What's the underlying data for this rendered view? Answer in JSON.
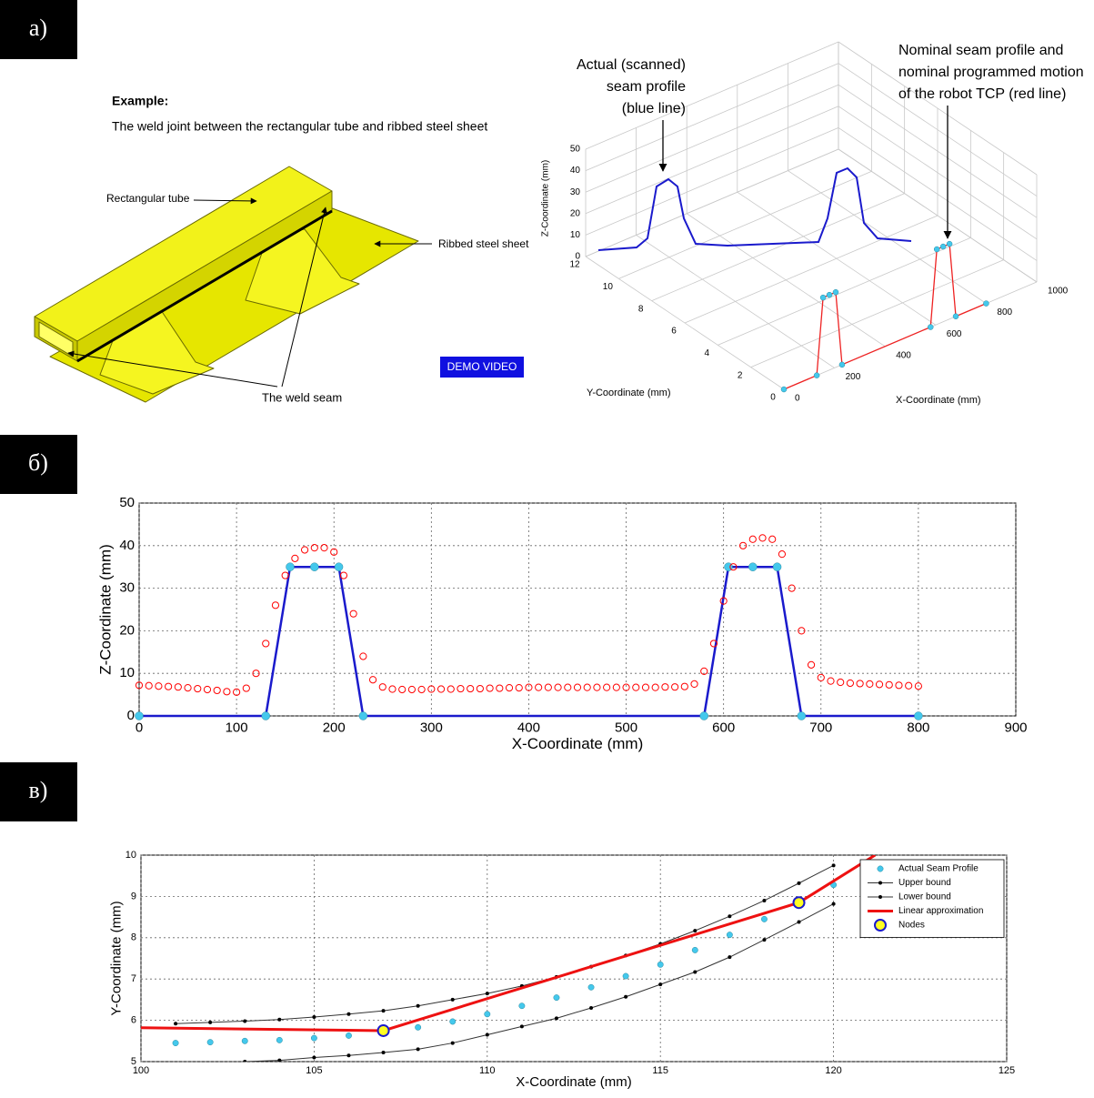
{
  "labels": {
    "a": "a)",
    "b": "б)",
    "c": "в)"
  },
  "panel_a": {
    "example_title": "Example:",
    "example_text": "The weld joint between the rectangular tube and ribbed steel sheet",
    "callouts": [
      "Rectangular tube",
      "Ribbed steel sheet",
      "The weld seam"
    ],
    "button": "DEMO VIDEO",
    "plot3d": {
      "annotations": [
        [
          "Actual (scanned)",
          "seam profile",
          "(blue line)"
        ],
        [
          "Nominal seam profile and",
          "nominal programmed motion",
          "of the robot TCP (red line)"
        ]
      ],
      "zlabel": "Z-Coordinate (mm)",
      "ylabel": "Y-Coordinate (mm)",
      "xlabel": "X-Coordinate (mm)",
      "zticks": [
        0,
        10,
        20,
        30,
        40,
        50
      ],
      "yticks": [
        0,
        2,
        4,
        6,
        8,
        10,
        12
      ],
      "xticks": [
        0,
        200,
        400,
        600,
        800,
        1000
      ]
    }
  },
  "chart_data": [
    {
      "type": "line",
      "xlabel": "X-Coordinate (mm)",
      "ylabel": "Z-Coordinate (mm)",
      "xlim": [
        0,
        900
      ],
      "ylim": [
        0,
        50
      ],
      "xticks": [
        0,
        100,
        200,
        300,
        400,
        500,
        600,
        700,
        800,
        900
      ],
      "yticks": [
        0,
        10,
        20,
        30,
        40,
        50
      ],
      "grid": true,
      "series": [
        {
          "color": "#1a1acc",
          "marker_color": "#44c8ec",
          "line": true,
          "marker": "dot",
          "x": [
            0,
            130,
            155,
            180,
            205,
            230,
            580,
            605,
            630,
            655,
            680,
            800
          ],
          "values": [
            0,
            0,
            35,
            35,
            35,
            0,
            0,
            35,
            35,
            35,
            0,
            0
          ]
        },
        {
          "marker_color": "#ff0000",
          "line": false,
          "marker": "ring",
          "x": [
            0,
            10,
            20,
            30,
            40,
            50,
            60,
            70,
            80,
            90,
            100,
            110,
            120,
            130,
            140,
            150,
            160,
            170,
            180,
            190,
            200,
            210,
            220,
            230,
            240,
            250,
            260,
            270,
            280,
            290,
            300,
            310,
            320,
            330,
            340,
            350,
            360,
            370,
            380,
            390,
            400,
            410,
            420,
            430,
            440,
            450,
            460,
            470,
            480,
            490,
            500,
            510,
            520,
            530,
            540,
            550,
            560,
            570,
            580,
            590,
            600,
            610,
            620,
            630,
            640,
            650,
            660,
            670,
            680,
            690,
            700,
            710,
            720,
            730,
            740,
            750,
            760,
            770,
            780,
            790,
            800
          ],
          "values": [
            7.2,
            7.1,
            7.0,
            6.9,
            6.8,
            6.6,
            6.4,
            6.2,
            6.0,
            5.7,
            5.6,
            6.5,
            10,
            17,
            26,
            33,
            37,
            39,
            39.5,
            39.5,
            38.5,
            33,
            24,
            14,
            8.5,
            6.8,
            6.3,
            6.2,
            6.2,
            6.2,
            6.3,
            6.3,
            6.3,
            6.4,
            6.4,
            6.4,
            6.5,
            6.5,
            6.6,
            6.6,
            6.7,
            6.7,
            6.7,
            6.7,
            6.7,
            6.7,
            6.7,
            6.7,
            6.7,
            6.7,
            6.7,
            6.7,
            6.7,
            6.7,
            6.8,
            6.8,
            6.9,
            7.5,
            10.5,
            17,
            27,
            35,
            40,
            41.5,
            41.8,
            41.5,
            38,
            30,
            20,
            12,
            9,
            8.2,
            7.9,
            7.7,
            7.6,
            7.5,
            7.4,
            7.3,
            7.2,
            7.1,
            7.0
          ]
        }
      ]
    },
    {
      "type": "line",
      "xlabel": "X-Coordinate (mm)",
      "ylabel": "Y-Coordinate (mm)",
      "xlim": [
        100,
        125
      ],
      "ylim": [
        5,
        10
      ],
      "xticks": [
        100,
        105,
        110,
        115,
        120,
        125
      ],
      "yticks": [
        5,
        6,
        7,
        8,
        9,
        10
      ],
      "grid": true,
      "legend": "upper right",
      "series": [
        {
          "name": "Actual Seam Profile",
          "marker_color": "#44c8ec",
          "line": false,
          "marker": "dot",
          "x": [
            101,
            102,
            103,
            104,
            105,
            106,
            107,
            108,
            109,
            110,
            111,
            112,
            113,
            114,
            115,
            116,
            117,
            118,
            119,
            120
          ],
          "values": [
            5.45,
            5.47,
            5.5,
            5.52,
            5.57,
            5.63,
            5.7,
            5.83,
            5.97,
            6.15,
            6.35,
            6.55,
            6.8,
            7.07,
            7.35,
            7.7,
            8.07,
            8.45,
            8.85,
            9.28
          ]
        },
        {
          "name": "Upper bound",
          "color": "#333333",
          "marker_color": "#000000",
          "line": true,
          "marker": "small",
          "x": [
            101,
            102,
            103,
            104,
            105,
            106,
            107,
            108,
            109,
            110,
            111,
            112,
            113,
            114,
            115,
            116,
            117,
            118,
            119,
            120
          ],
          "values": [
            5.92,
            5.95,
            5.98,
            6.02,
            6.08,
            6.15,
            6.23,
            6.35,
            6.5,
            6.65,
            6.83,
            7.05,
            7.3,
            7.57,
            7.85,
            8.17,
            8.52,
            8.9,
            9.32,
            9.75
          ]
        },
        {
          "name": "Lower bound",
          "color": "#333333",
          "marker_color": "#000000",
          "line": true,
          "marker": "small",
          "x": [
            103,
            104,
            105,
            106,
            107,
            108,
            109,
            110,
            111,
            112,
            113,
            114,
            115,
            116,
            117,
            118,
            119,
            120
          ],
          "values": [
            5.0,
            5.03,
            5.1,
            5.15,
            5.22,
            5.3,
            5.45,
            5.65,
            5.85,
            6.05,
            6.3,
            6.57,
            6.87,
            7.17,
            7.53,
            7.95,
            8.38,
            8.82
          ]
        },
        {
          "name": "Linear approximation",
          "color": "#ee1111",
          "line": true,
          "marker": "none",
          "width": 3,
          "x": [
            100,
            107,
            119,
            121.2
          ],
          "values": [
            5.82,
            5.75,
            8.85,
            10
          ]
        },
        {
          "name": "Nodes",
          "marker_color": "#ffff22",
          "edge_color": "#1a1acc",
          "line": false,
          "marker": "big",
          "x": [
            107,
            119
          ],
          "values": [
            5.75,
            8.85
          ]
        }
      ]
    }
  ]
}
